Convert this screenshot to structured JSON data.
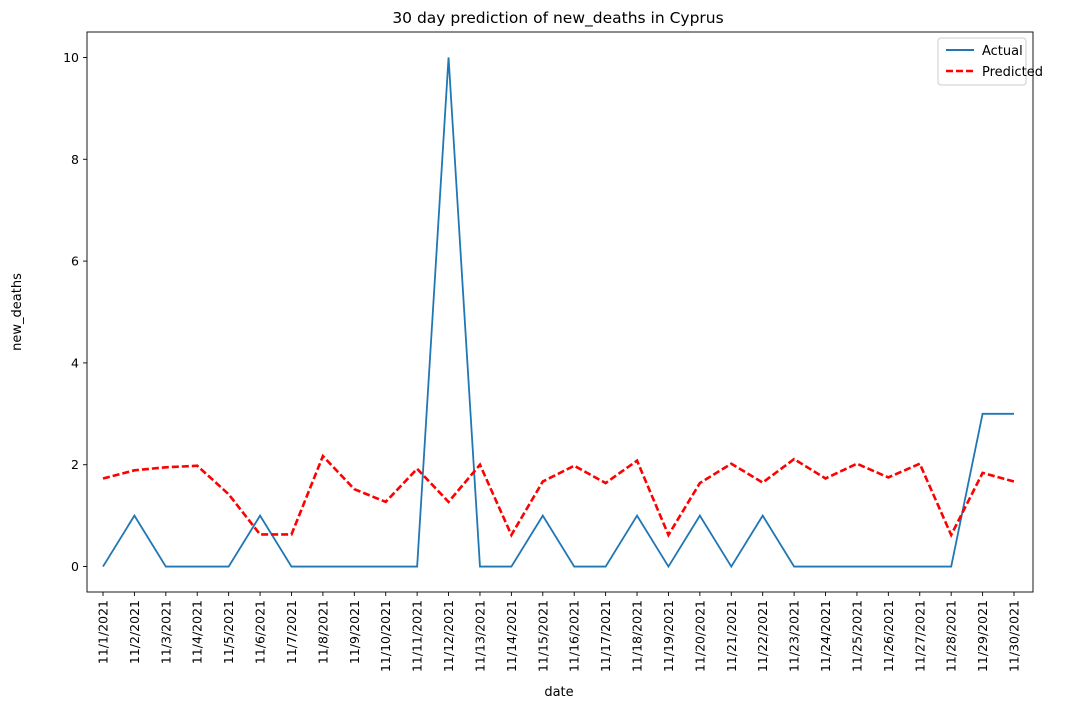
{
  "chart_data": {
    "type": "line",
    "title": "30 day prediction of new_deaths in Cyprus",
    "xlabel": "date",
    "ylabel": "new_deaths",
    "ylim": [
      -0.5,
      10.5
    ],
    "yticks": [
      0,
      2,
      4,
      6,
      8,
      10
    ],
    "grid": false,
    "legend_position": "top-right",
    "categories": [
      "11/1/2021",
      "11/2/2021",
      "11/3/2021",
      "11/4/2021",
      "11/5/2021",
      "11/6/2021",
      "11/7/2021",
      "11/8/2021",
      "11/9/2021",
      "11/10/2021",
      "11/11/2021",
      "11/12/2021",
      "11/13/2021",
      "11/14/2021",
      "11/15/2021",
      "11/16/2021",
      "11/17/2021",
      "11/18/2021",
      "11/19/2021",
      "11/20/2021",
      "11/21/2021",
      "11/22/2021",
      "11/23/2021",
      "11/24/2021",
      "11/25/2021",
      "11/26/2021",
      "11/27/2021",
      "11/28/2021",
      "11/29/2021",
      "11/30/2021"
    ],
    "series": [
      {
        "name": "Actual",
        "color": "#1f77b4",
        "style": "solid",
        "values": [
          0,
          1,
          0,
          0,
          0,
          1,
          0,
          0,
          0,
          0,
          0,
          10,
          0,
          0,
          1,
          0,
          0,
          1,
          0,
          1,
          0,
          1,
          0,
          0,
          0,
          0,
          0,
          0,
          3,
          3
        ]
      },
      {
        "name": "Predicted",
        "color": "#ff0000",
        "style": "dashed",
        "values": [
          1.73,
          1.89,
          1.95,
          1.98,
          1.42,
          0.63,
          0.63,
          2.17,
          1.52,
          1.27,
          1.92,
          1.27,
          2.0,
          0.62,
          1.67,
          1.98,
          1.64,
          2.08,
          0.62,
          1.64,
          2.02,
          1.65,
          2.11,
          1.73,
          2.02,
          1.75,
          2.02,
          0.62,
          1.84,
          1.67
        ]
      }
    ]
  }
}
